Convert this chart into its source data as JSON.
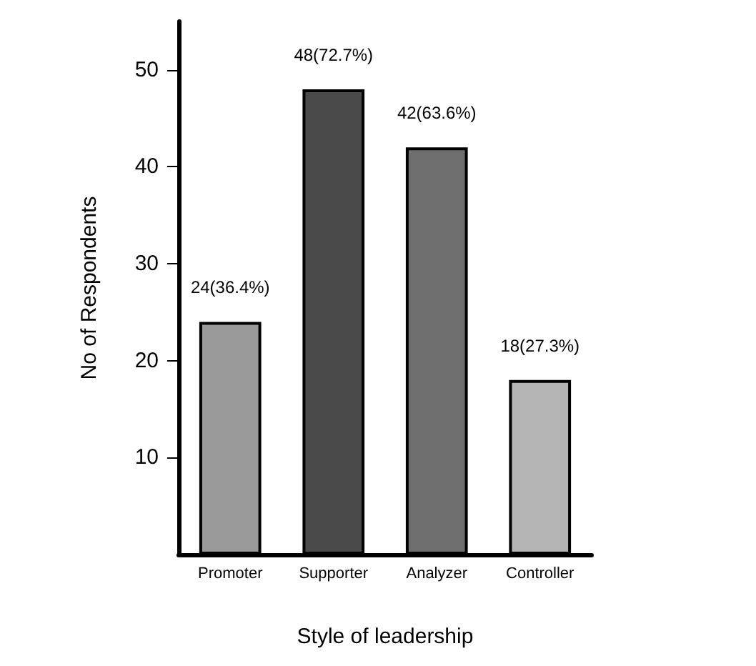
{
  "chart_data": {
    "type": "bar",
    "xlabel": "Style of leadership",
    "ylabel": "No of Respondents",
    "categories": [
      "Promoter",
      "Supporter",
      "Analyzer",
      "Controller"
    ],
    "values": [
      24,
      48,
      42,
      18
    ],
    "colors": [
      "#9a9a9a",
      "#4a4a4a",
      "#6e6e6e",
      "#b4b4b4"
    ],
    "value_labels": [
      "24(36.4%)",
      "48(72.7%)",
      "42(63.6%)",
      "18(27.3%)"
    ],
    "ylim": [
      0,
      55
    ],
    "yticks": [
      10,
      20,
      30,
      40,
      50
    ],
    "grid": false
  }
}
